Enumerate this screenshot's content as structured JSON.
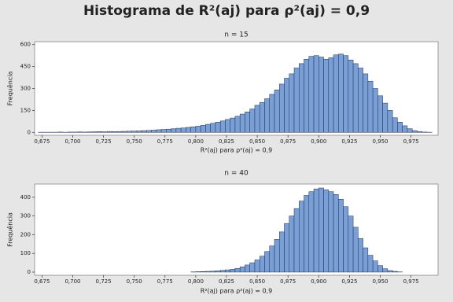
{
  "title": "Histograma de R²(aj) para ρ²(aj) = 0,9",
  "chart_data": [
    {
      "type": "histogram",
      "title": "n = 15",
      "x_label": "R²(aj) para ρ²(aj) = 0,9",
      "y_label": "Frequência",
      "color": "#7a9fd6",
      "bins": [
        0.672,
        0.676,
        0.68,
        0.684,
        0.688,
        0.692,
        0.696,
        0.7,
        0.704,
        0.708,
        0.712,
        0.716,
        0.72,
        0.724,
        0.728,
        0.732,
        0.736,
        0.74,
        0.744,
        0.748,
        0.752,
        0.756,
        0.76,
        0.764,
        0.768,
        0.772,
        0.776,
        0.78,
        0.784,
        0.788,
        0.792,
        0.796,
        0.8,
        0.804,
        0.808,
        0.812,
        0.816,
        0.82,
        0.824,
        0.828,
        0.832,
        0.836,
        0.84,
        0.844,
        0.848,
        0.852,
        0.856,
        0.86,
        0.864,
        0.868,
        0.872,
        0.876,
        0.88,
        0.884,
        0.888,
        0.892,
        0.896,
        0.9,
        0.904,
        0.908,
        0.912,
        0.916,
        0.92,
        0.924,
        0.928,
        0.932,
        0.936,
        0.94,
        0.944,
        0.948,
        0.952,
        0.956,
        0.96,
        0.964,
        0.968,
        0.972,
        0.976,
        0.98,
        0.984,
        0.988,
        0.992
      ],
      "values": [
        1,
        1,
        1,
        1,
        2,
        1,
        2,
        2,
        3,
        2,
        3,
        4,
        5,
        4,
        6,
        5,
        6,
        7,
        8,
        9,
        10,
        12,
        13,
        15,
        18,
        20,
        22,
        25,
        28,
        30,
        34,
        38,
        42,
        48,
        55,
        62,
        70,
        78,
        88,
        98,
        110,
        125,
        140,
        160,
        185,
        205,
        230,
        260,
        290,
        330,
        370,
        400,
        440,
        470,
        500,
        520,
        525,
        515,
        500,
        510,
        530,
        535,
        525,
        495,
        470,
        440,
        400,
        350,
        300,
        250,
        200,
        150,
        100,
        70,
        45,
        25,
        12,
        6,
        2,
        1
      ],
      "xlim": [
        0.669,
        0.997
      ],
      "ylim": [
        -20,
        620
      ],
      "xticks": [
        {
          "value": 0.675,
          "label": "0,675"
        },
        {
          "value": 0.7,
          "label": "0,700"
        },
        {
          "value": 0.725,
          "label": "0,725"
        },
        {
          "value": 0.75,
          "label": "0,750"
        },
        {
          "value": 0.775,
          "label": "0,775"
        },
        {
          "value": 0.8,
          "label": "0,800"
        },
        {
          "value": 0.825,
          "label": "0,825"
        },
        {
          "value": 0.85,
          "label": "0,850"
        },
        {
          "value": 0.875,
          "label": "0,875"
        },
        {
          "value": 0.9,
          "label": "0,900"
        },
        {
          "value": 0.925,
          "label": "0,925"
        },
        {
          "value": 0.95,
          "label": "0,950"
        },
        {
          "value": 0.975,
          "label": "0,975"
        }
      ],
      "yticks": [
        0,
        150,
        300,
        450,
        600
      ]
    },
    {
      "type": "histogram",
      "title": "n = 40",
      "x_label": "R²(aj) para ρ²(aj) = 0,9",
      "y_label": "Frequência",
      "color": "#7a9fd6",
      "bins": [
        0.796,
        0.8,
        0.804,
        0.808,
        0.812,
        0.816,
        0.82,
        0.824,
        0.828,
        0.832,
        0.836,
        0.84,
        0.844,
        0.848,
        0.852,
        0.856,
        0.86,
        0.864,
        0.868,
        0.872,
        0.876,
        0.88,
        0.884,
        0.888,
        0.892,
        0.896,
        0.9,
        0.904,
        0.908,
        0.912,
        0.916,
        0.92,
        0.924,
        0.928,
        0.932,
        0.936,
        0.94,
        0.944,
        0.948,
        0.952,
        0.956,
        0.96,
        0.964,
        0.968
      ],
      "values": [
        1,
        2,
        3,
        4,
        5,
        7,
        9,
        12,
        15,
        20,
        28,
        38,
        50,
        65,
        85,
        110,
        140,
        175,
        215,
        260,
        300,
        340,
        380,
        410,
        430,
        445,
        450,
        440,
        430,
        415,
        390,
        350,
        300,
        240,
        180,
        130,
        90,
        60,
        35,
        18,
        8,
        4,
        1
      ],
      "xlim": [
        0.669,
        0.997
      ],
      "ylim": [
        -17,
        471
      ],
      "xticks": [
        {
          "value": 0.675,
          "label": "0,675"
        },
        {
          "value": 0.7,
          "label": "0,700"
        },
        {
          "value": 0.725,
          "label": "0,725"
        },
        {
          "value": 0.75,
          "label": "0,750"
        },
        {
          "value": 0.775,
          "label": "0,775"
        },
        {
          "value": 0.8,
          "label": "0,800"
        },
        {
          "value": 0.825,
          "label": "0,825"
        },
        {
          "value": 0.85,
          "label": "0,850"
        },
        {
          "value": 0.875,
          "label": "0,875"
        },
        {
          "value": 0.9,
          "label": "0,900"
        },
        {
          "value": 0.925,
          "label": "0,925"
        },
        {
          "value": 0.95,
          "label": "0,950"
        },
        {
          "value": 0.975,
          "label": "0,975"
        }
      ],
      "yticks": [
        0,
        100,
        200,
        300,
        400
      ]
    }
  ]
}
